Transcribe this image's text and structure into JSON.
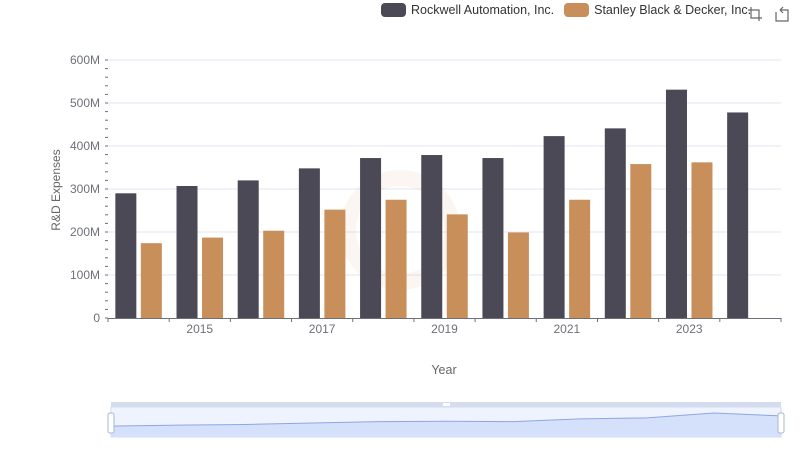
{
  "legend": {
    "series1_label": "Rockwell Automation, Inc.",
    "series2_label": "Stanley Black & Decker, Inc."
  },
  "colors": {
    "series1": "#4a4955",
    "series2": "#c98f5b",
    "grid": "#e0e6f1",
    "slider_fill": "#d5e0fb",
    "slider_line": "#8fa6e3"
  },
  "icons": {
    "restore": "restore-icon",
    "zoom": "zoom-icon"
  },
  "chart_data": {
    "type": "bar",
    "title": "",
    "xlabel": "Year",
    "ylabel": "R&D Expenses",
    "categories": [
      "2014",
      "2015",
      "2016",
      "2017",
      "2018",
      "2019",
      "2020",
      "2021",
      "2022",
      "2023",
      "2024"
    ],
    "x_tick_labels": [
      "2015",
      "2017",
      "2019",
      "2021",
      "2023"
    ],
    "y_tick_labels": [
      "0",
      "100M",
      "200M",
      "300M",
      "400M",
      "500M",
      "600M"
    ],
    "ylim": [
      0,
      600000000
    ],
    "series": [
      {
        "name": "Rockwell Automation, Inc.",
        "values": [
          290000000,
          307000000,
          320000000,
          348000000,
          372000000,
          379000000,
          372000000,
          423000000,
          441000000,
          531000000,
          478000000
        ]
      },
      {
        "name": "Stanley Black & Decker, Inc.",
        "values": [
          174000000,
          187000000,
          203000000,
          252000000,
          275000000,
          241000000,
          199000000,
          275000000,
          358000000,
          362000000,
          null
        ]
      }
    ]
  }
}
